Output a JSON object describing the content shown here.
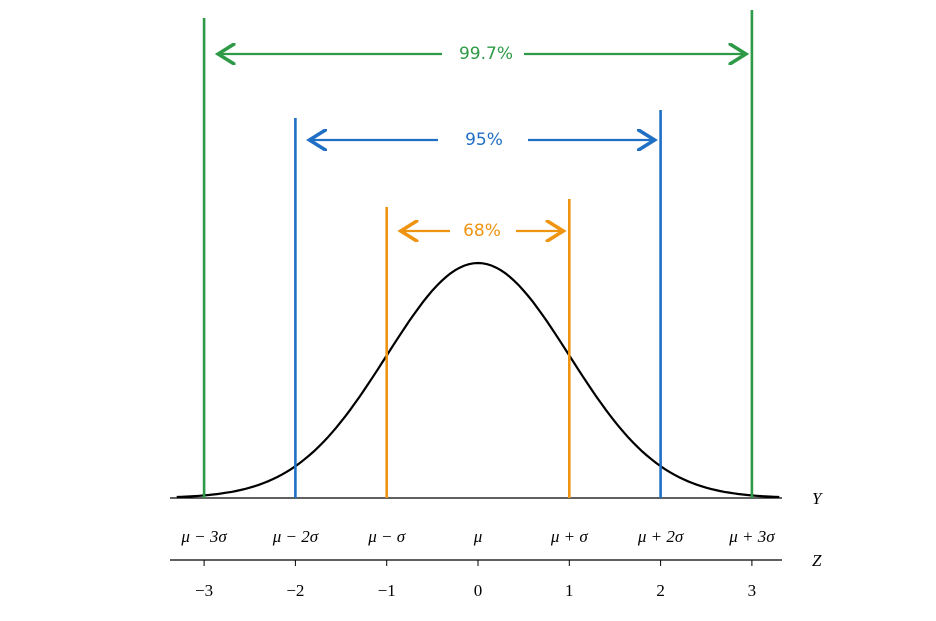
{
  "intervals": [
    {
      "label": "99.7%",
      "color": "#2e9a47"
    },
    {
      "label": "95%",
      "color": "#1f6fc4"
    },
    {
      "label": "68%",
      "color": "#ee9410"
    }
  ],
  "y_axis": {
    "name": "Y",
    "labels": [
      "μ − 3σ",
      "μ − 2σ",
      "μ − σ",
      "μ",
      "μ + σ",
      "μ + 2σ",
      "μ + 3σ"
    ]
  },
  "z_axis": {
    "name": "Z",
    "labels": [
      "−3",
      "−2",
      "−1",
      "0",
      "1",
      "2",
      "3"
    ]
  }
}
